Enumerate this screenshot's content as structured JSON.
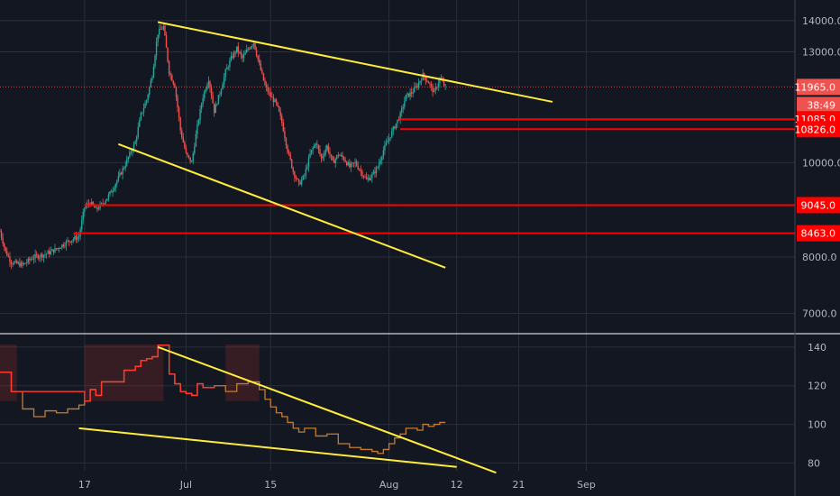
{
  "chart_data": [
    {
      "type": "candlestick",
      "panel": "price",
      "y_ticks": [
        7000,
        8000,
        10000,
        13000,
        14000
      ],
      "y_tick_labels": [
        "7000.0",
        "8000.0",
        "10000.0",
        "13000.0",
        "14000.0"
      ],
      "y_scale": "log",
      "ylim": [
        6700,
        14700
      ],
      "price_points": [
        [
          0,
          8500
        ],
        [
          1,
          8100
        ],
        [
          2,
          7900
        ],
        [
          4,
          7850
        ],
        [
          6,
          8000
        ],
        [
          8,
          8050
        ],
        [
          10,
          8150
        ],
        [
          12,
          8300
        ],
        [
          14,
          8400
        ],
        [
          15,
          9000
        ],
        [
          16,
          9100
        ],
        [
          17,
          8950
        ],
        [
          18,
          9050
        ],
        [
          19,
          9200
        ],
        [
          20,
          9400
        ],
        [
          22,
          9900
        ],
        [
          24,
          10500
        ],
        [
          25,
          11200
        ],
        [
          26,
          11600
        ],
        [
          27,
          12300
        ],
        [
          28,
          13600
        ],
        [
          29,
          13800
        ],
        [
          30,
          12400
        ],
        [
          31,
          12000
        ],
        [
          32,
          10800
        ],
        [
          33,
          10200
        ],
        [
          34,
          10000
        ],
        [
          35,
          10900
        ],
        [
          36,
          11700
        ],
        [
          37,
          12200
        ],
        [
          38,
          11300
        ],
        [
          39,
          11800
        ],
        [
          40,
          12400
        ],
        [
          41,
          12800
        ],
        [
          42,
          13100
        ],
        [
          43,
          12800
        ],
        [
          44,
          13100
        ],
        [
          45,
          13300
        ],
        [
          46,
          12600
        ],
        [
          47,
          12000
        ],
        [
          48,
          11700
        ],
        [
          49,
          11500
        ],
        [
          50,
          11000
        ],
        [
          51,
          10300
        ],
        [
          52,
          9800
        ],
        [
          53,
          9500
        ],
        [
          54,
          9700
        ],
        [
          55,
          10200
        ],
        [
          56,
          10500
        ],
        [
          57,
          10100
        ],
        [
          58,
          10400
        ],
        [
          59,
          10000
        ],
        [
          60,
          10200
        ],
        [
          61,
          10100
        ],
        [
          62,
          9900
        ],
        [
          63,
          10000
        ],
        [
          64,
          9800
        ],
        [
          65,
          9600
        ],
        [
          66,
          9700
        ],
        [
          67,
          9900
        ],
        [
          68,
          10300
        ],
        [
          69,
          10600
        ],
        [
          70,
          10900
        ],
        [
          71,
          11200
        ],
        [
          72,
          11700
        ],
        [
          73,
          11800
        ],
        [
          74,
          12000
        ],
        [
          75,
          12300
        ],
        [
          76,
          12100
        ],
        [
          77,
          11800
        ],
        [
          78,
          12200
        ],
        [
          79,
          11965
        ]
      ],
      "price_levels": [
        11085,
        10826,
        9045,
        8463
      ],
      "last_price": 11965,
      "countdown": "38:49",
      "badges": [
        {
          "label": "11965.0",
          "value": 11965,
          "color": "#ef5350"
        },
        {
          "label": "38:49",
          "value": 11965,
          "color": "#ef5350",
          "below": true
        },
        {
          "label": "11085.0",
          "value": 11085,
          "color": "#ff0000"
        },
        {
          "label": "10826.0",
          "value": 10826,
          "color": "#ff0000"
        },
        {
          "label": "9045.0",
          "value": 9045,
          "color": "#ff0000"
        },
        {
          "label": "8463.0",
          "value": 8463,
          "color": "#ff0000"
        }
      ],
      "trendlines": [
        {
          "from": [
            28,
            13950
          ],
          "to": [
            98,
            11550
          ]
        },
        {
          "from": [
            21,
            10450
          ],
          "to": [
            79,
            7800
          ]
        }
      ]
    },
    {
      "type": "line",
      "panel": "oscillator",
      "y_ticks": [
        80,
        100,
        120,
        140
      ],
      "ylim": [
        76,
        146
      ],
      "values": [
        [
          0,
          127
        ],
        [
          2,
          117
        ],
        [
          4,
          108
        ],
        [
          6,
          104
        ],
        [
          8,
          107
        ],
        [
          10,
          106
        ],
        [
          12,
          108
        ],
        [
          14,
          110
        ],
        [
          15,
          112
        ],
        [
          16,
          118
        ],
        [
          17,
          115
        ],
        [
          18,
          122
        ],
        [
          20,
          122
        ],
        [
          22,
          128
        ],
        [
          24,
          130
        ],
        [
          25,
          133
        ],
        [
          26,
          134
        ],
        [
          27,
          135
        ],
        [
          28,
          141
        ],
        [
          29,
          141
        ],
        [
          30,
          126
        ],
        [
          31,
          121
        ],
        [
          32,
          117
        ],
        [
          33,
          116
        ],
        [
          34,
          115
        ],
        [
          35,
          121
        ],
        [
          36,
          119
        ],
        [
          38,
          120
        ],
        [
          40,
          117
        ],
        [
          42,
          121
        ],
        [
          44,
          122
        ],
        [
          46,
          118
        ],
        [
          47,
          113
        ],
        [
          48,
          109
        ],
        [
          49,
          106
        ],
        [
          50,
          104
        ],
        [
          51,
          101
        ],
        [
          52,
          98
        ],
        [
          53,
          96
        ],
        [
          54,
          98
        ],
        [
          56,
          94
        ],
        [
          58,
          95
        ],
        [
          60,
          90
        ],
        [
          62,
          88
        ],
        [
          64,
          87
        ],
        [
          66,
          86
        ],
        [
          67,
          85
        ],
        [
          68,
          87
        ],
        [
          69,
          90
        ],
        [
          70,
          93
        ],
        [
          71,
          95
        ],
        [
          72,
          98
        ],
        [
          74,
          97
        ],
        [
          75,
          100
        ],
        [
          76,
          99
        ],
        [
          77,
          100
        ],
        [
          78,
          101
        ],
        [
          79,
          101
        ]
      ],
      "trendlines": [
        {
          "from": [
            28,
            140
          ],
          "to": [
            88,
            75
          ]
        },
        {
          "from": [
            14,
            98
          ],
          "to": [
            81,
            78
          ]
        }
      ]
    }
  ],
  "x_ticks": [
    {
      "label": "17",
      "index": 15
    },
    {
      "label": "Jul",
      "index": 33
    },
    {
      "label": "15",
      "index": 48
    },
    {
      "label": "Aug",
      "index": 69
    },
    {
      "label": "12",
      "index": 81
    },
    {
      "label": "21",
      "index": 92
    },
    {
      "label": "Sep",
      "index": 104
    }
  ],
  "x_index_range": [
    0,
    141
  ],
  "colors": {
    "background": "#131722",
    "grid": "#2a2e39",
    "up": "#26a69a",
    "down": "#ef5350",
    "trendline": "#ffeb3b",
    "level": "#ff0000",
    "oscillator_line": "#c77b2e",
    "oscillator_highlight": "#ff3b30"
  }
}
